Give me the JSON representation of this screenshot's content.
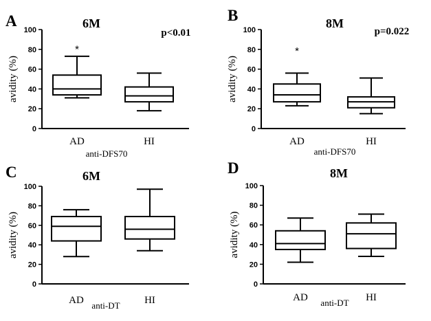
{
  "chart_data": [
    {
      "panel_label": "A",
      "type": "boxplot",
      "title": "6M",
      "pvalue": "p<0.01",
      "ylabel": "avidity (%)",
      "xlabel": "anti-DFS70",
      "ylim": [
        0,
        100
      ],
      "yticks": [
        "0",
        "20",
        "40",
        "60",
        "80",
        "100"
      ],
      "categories": [
        "AD",
        "HI"
      ],
      "boxes": [
        {
          "category": "AD",
          "min": 31,
          "q1": 34,
          "median": 40,
          "q3": 54,
          "max": 73
        },
        {
          "category": "HI",
          "min": 18,
          "q1": 27,
          "median": 33,
          "q3": 42,
          "max": 56
        }
      ],
      "annotations": [
        {
          "category": "AD",
          "text": "*",
          "y": 81
        }
      ]
    },
    {
      "panel_label": "B",
      "type": "boxplot",
      "title": "8M",
      "pvalue": "p=0.022",
      "ylabel": "avidity (%)",
      "xlabel": "anti-DFS70",
      "ylim": [
        0,
        100
      ],
      "yticks": [
        "0",
        "20",
        "40",
        "60",
        "80",
        "100"
      ],
      "categories": [
        "AD",
        "HI"
      ],
      "boxes": [
        {
          "category": "AD",
          "min": 23,
          "q1": 27,
          "median": 34,
          "q3": 45,
          "max": 56
        },
        {
          "category": "HI",
          "min": 15,
          "q1": 21,
          "median": 27,
          "q3": 32,
          "max": 51
        }
      ],
      "annotations": [
        {
          "category": "AD",
          "text": "*",
          "y": 79
        }
      ]
    },
    {
      "panel_label": "C",
      "type": "boxplot",
      "title": "6M",
      "pvalue": "",
      "ylabel": "avidity (%)",
      "xlabel": "anti-DT",
      "ylim": [
        0,
        100
      ],
      "yticks": [
        "0",
        "20",
        "40",
        "60",
        "80",
        "100"
      ],
      "categories": [
        "AD",
        "HI"
      ],
      "boxes": [
        {
          "category": "AD",
          "min": 28,
          "q1": 44,
          "median": 59,
          "q3": 69,
          "max": 76
        },
        {
          "category": "HI",
          "min": 34,
          "q1": 46,
          "median": 56,
          "q3": 69,
          "max": 97
        }
      ],
      "annotations": []
    },
    {
      "panel_label": "D",
      "type": "boxplot",
      "title": "8M",
      "pvalue": "",
      "ylabel": "avidity (%)",
      "xlabel": "anti-DT",
      "ylim": [
        0,
        100
      ],
      "yticks": [
        "0",
        "20",
        "40",
        "60",
        "80",
        "100"
      ],
      "categories": [
        "AD",
        "HI"
      ],
      "boxes": [
        {
          "category": "AD",
          "min": 22,
          "q1": 35,
          "median": 41,
          "q3": 54,
          "max": 67
        },
        {
          "category": "HI",
          "min": 28,
          "q1": 36,
          "median": 51,
          "q3": 62,
          "max": 71
        }
      ],
      "annotations": []
    }
  ],
  "colors": {
    "ink": "#000000",
    "background": "#ffffff"
  }
}
